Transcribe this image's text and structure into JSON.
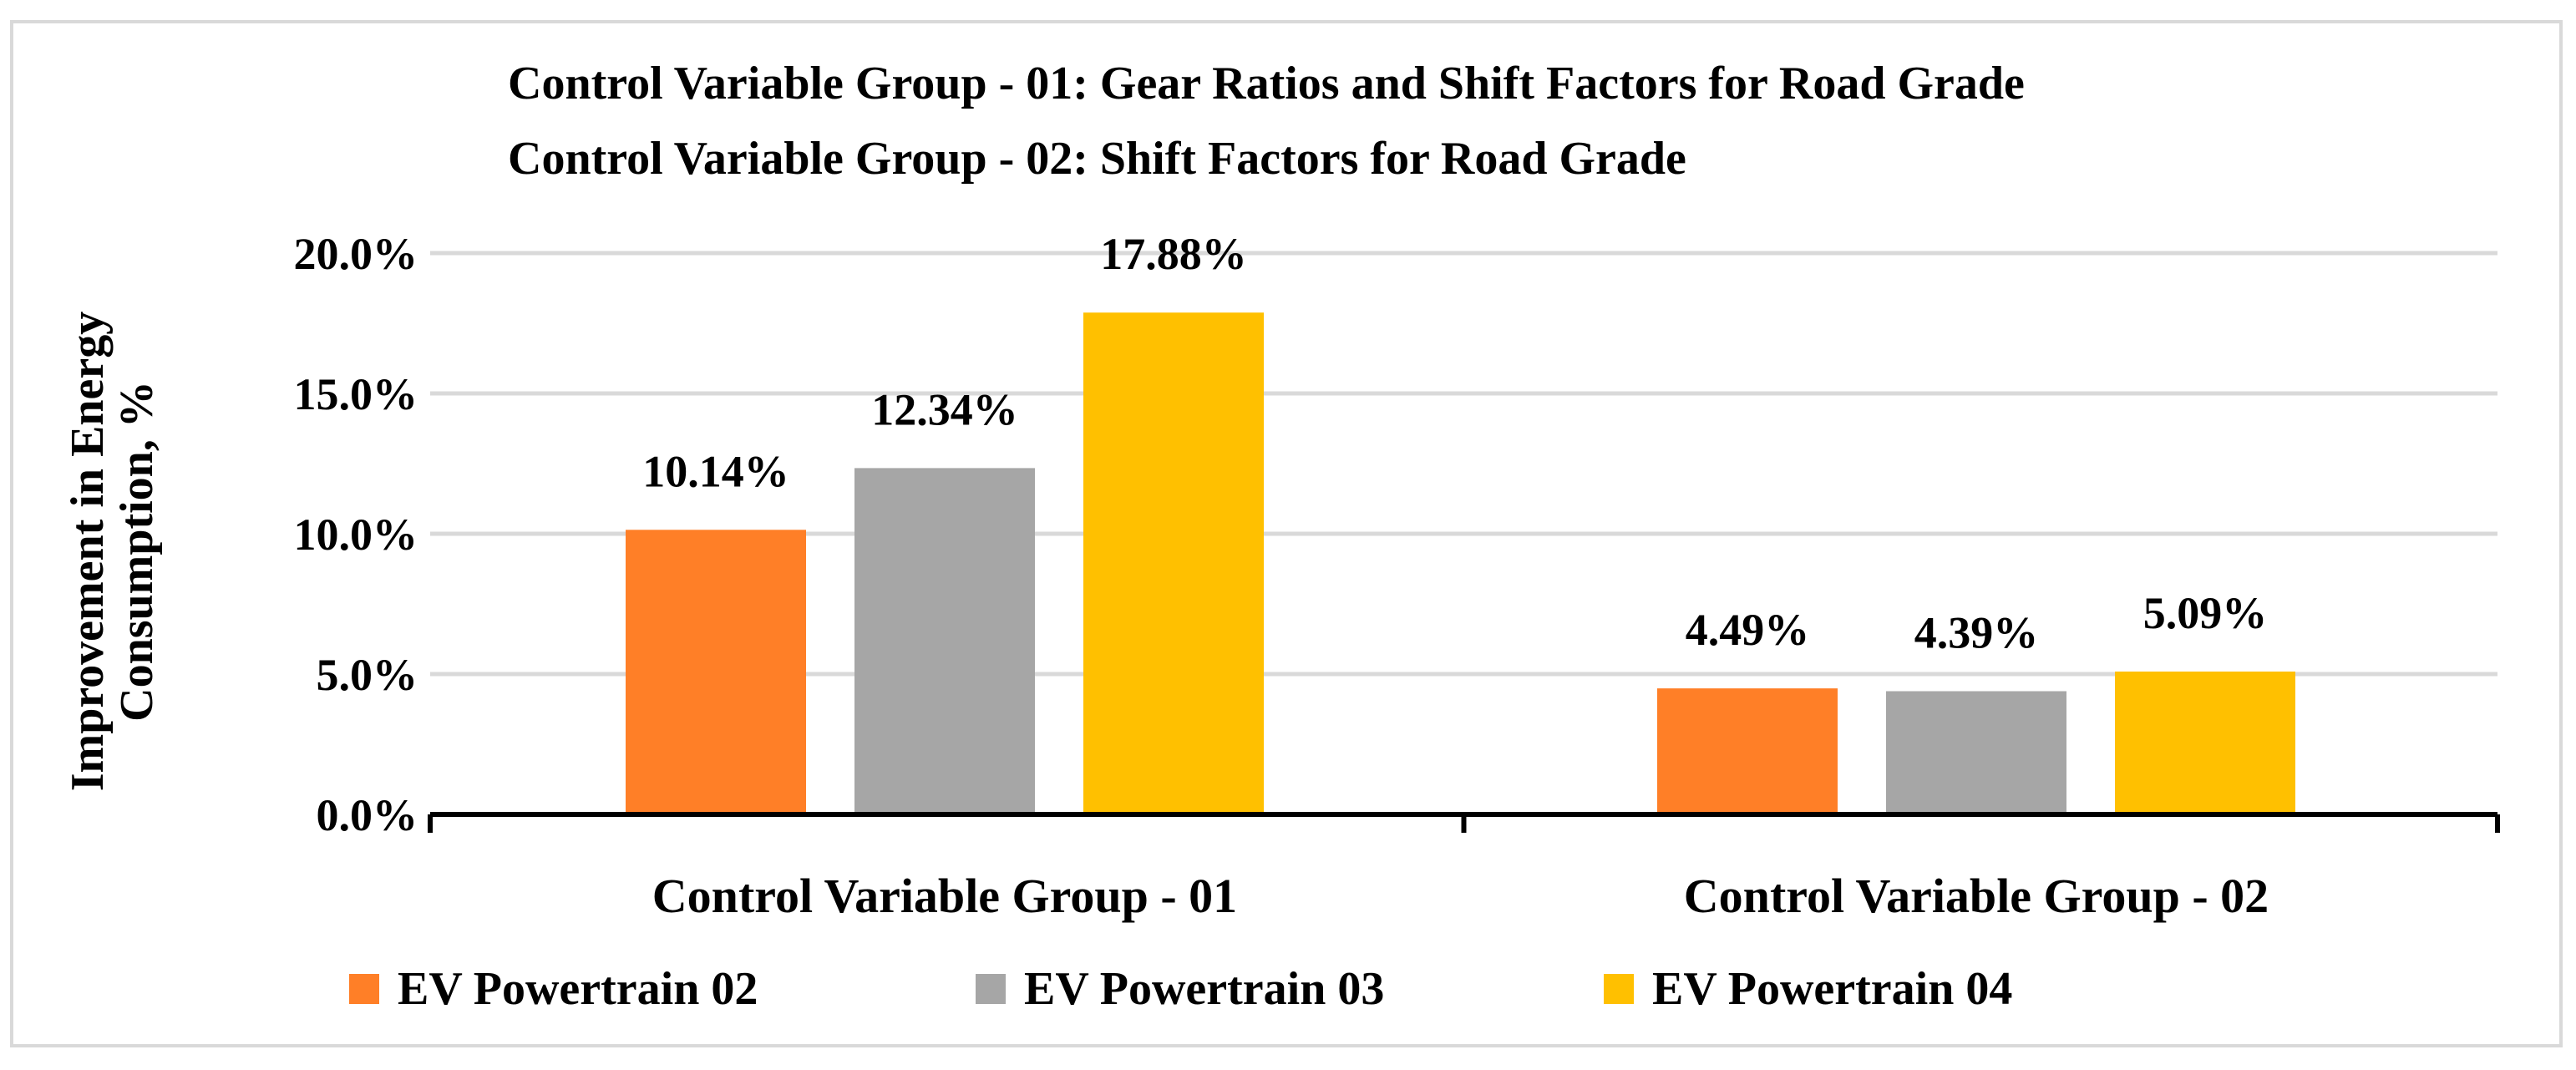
{
  "chart_data": {
    "type": "bar",
    "title_lines": [
      "Control Variable Group - 01: Gear Ratios and Shift Factors for Road Grade",
      "Control Variable Group - 02: Shift Factors for Road Grade"
    ],
    "ylabel_lines": [
      "Improvement in Energy",
      "Consumption, %"
    ],
    "xlabel": "",
    "ylim": [
      0,
      20
    ],
    "yticks": [
      0,
      5,
      10,
      15,
      20
    ],
    "ytick_labels": [
      "0.0%",
      "5.0%",
      "10.0%",
      "15.0%",
      "20.0%"
    ],
    "categories": [
      "Control Variable Group - 01",
      "Control Variable Group - 02"
    ],
    "series": [
      {
        "name": "EV Powertrain 02",
        "color": "#FF7F27",
        "values": [
          10.14,
          4.49
        ],
        "labels": [
          "10.14%",
          "4.49%"
        ]
      },
      {
        "name": "EV Powertrain 03",
        "color": "#A6A6A6",
        "values": [
          12.34,
          4.39
        ],
        "labels": [
          "12.34%",
          "4.39%"
        ]
      },
      {
        "name": "EV Powertrain 04",
        "color": "#FFC000",
        "values": [
          17.88,
          5.09
        ],
        "labels": [
          "17.88%",
          "5.09%"
        ]
      }
    ],
    "grid": true,
    "legend_position": "bottom"
  }
}
